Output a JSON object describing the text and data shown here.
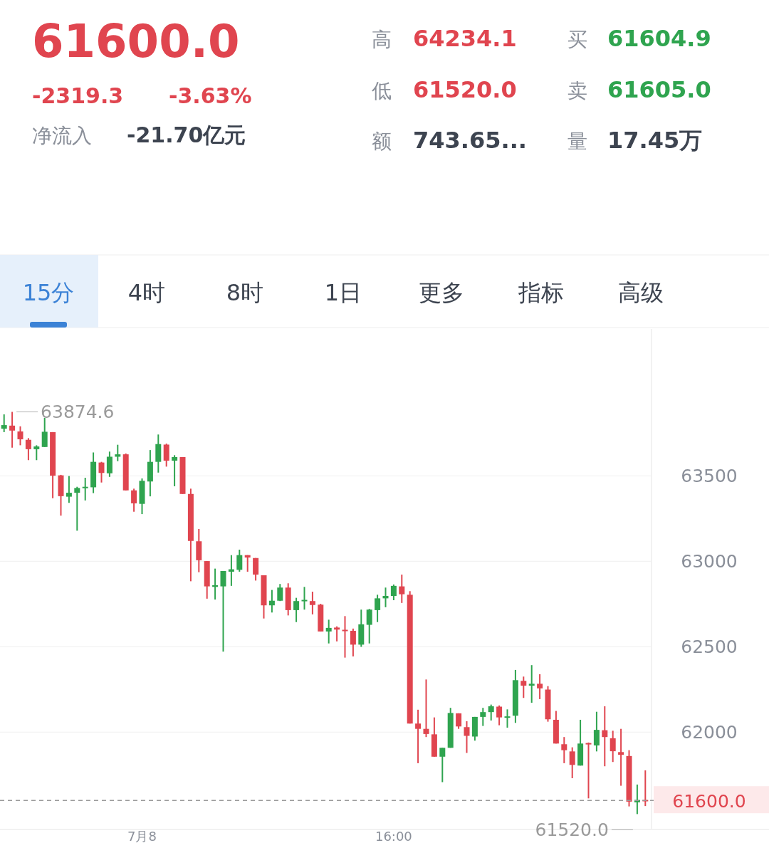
{
  "chart_data": {
    "type": "candlestick",
    "title": "61600.0",
    "annotations": [
      "-2319.3",
      "-3.63%",
      "净流入",
      "-21.70亿元",
      "高",
      "64234.1",
      "低",
      "61520.0",
      "额",
      "743.65...",
      "买",
      "61604.9",
      "卖",
      "61605.0",
      "量",
      "17.45万",
      "15分",
      "4时",
      "8时",
      "1日",
      "更多",
      "指标",
      "高级",
      "63874.6",
      "61520.0"
    ],
    "categories": [
      null,
      null,
      null,
      null,
      null,
      null,
      null,
      null,
      null,
      null,
      null,
      null,
      null,
      null,
      null,
      null,
      null,
      "7月8",
      null,
      null,
      null,
      null,
      null,
      null,
      null,
      null,
      null,
      null,
      null,
      null,
      null,
      null,
      null,
      null,
      null,
      null,
      null,
      null,
      null,
      null,
      null,
      null,
      null,
      null,
      null,
      null,
      null,
      null,
      "16:00",
      null,
      null,
      null,
      null,
      null,
      null,
      null,
      null,
      null,
      null,
      null,
      null,
      null,
      null,
      null,
      null,
      null,
      null,
      null,
      null,
      null,
      null,
      null,
      null,
      null,
      null,
      null,
      null,
      null,
      null,
      null
    ],
    "ohlc": [
      [
        63776,
        63860,
        63756,
        63797
      ],
      [
        63794,
        63874.6,
        63665,
        63765
      ],
      [
        63760,
        63790,
        63679,
        63714
      ],
      [
        63711,
        63721,
        63592,
        63656
      ],
      [
        63656,
        63679,
        63592,
        63672
      ],
      [
        63669,
        63839,
        63669,
        63758
      ],
      [
        63756,
        63756,
        63369,
        63501
      ],
      [
        63503,
        63506,
        63267,
        63381
      ],
      [
        63378,
        63499,
        63342,
        63401
      ],
      [
        63401,
        63436,
        63179,
        63429
      ],
      [
        63430,
        63489,
        63356,
        63436
      ],
      [
        63433,
        63637,
        63399,
        63582
      ],
      [
        63578,
        63582,
        63461,
        63517
      ],
      [
        63515,
        63642,
        63494,
        63612
      ],
      [
        63612,
        63682,
        63586,
        63626
      ],
      [
        63626,
        63631,
        63415,
        63415
      ],
      [
        63415,
        63425,
        63290,
        63339
      ],
      [
        63336,
        63485,
        63276,
        63471
      ],
      [
        63467,
        63651,
        63380,
        63582
      ],
      [
        63582,
        63742,
        63519,
        63686
      ],
      [
        63683,
        63689,
        63554,
        63589
      ],
      [
        63589,
        63621,
        63439,
        63610
      ],
      [
        63610,
        63610,
        63394,
        63394
      ],
      [
        63394,
        63425,
        62883,
        63119
      ],
      [
        63117,
        63189,
        62936,
        63006
      ],
      [
        63001,
        63001,
        62781,
        62853
      ],
      [
        62850,
        62957,
        62776,
        62860
      ],
      [
        62853,
        62943,
        62471,
        62943
      ],
      [
        62939,
        63036,
        62856,
        62953
      ],
      [
        62950,
        63068,
        62939,
        63036
      ],
      [
        63036,
        63036,
        62939,
        63022
      ],
      [
        63019,
        63019,
        62887,
        62922
      ],
      [
        62918,
        62918,
        62665,
        62742
      ],
      [
        62742,
        62832,
        62700,
        62769
      ],
      [
        62769,
        62867,
        62767,
        62846
      ],
      [
        62846,
        62871,
        62683,
        62714
      ],
      [
        62714,
        62786,
        62644,
        62767
      ],
      [
        62767,
        62850,
        62717,
        62774
      ],
      [
        62767,
        62822,
        62689,
        62744
      ],
      [
        62746,
        62751,
        62589,
        62589
      ],
      [
        62589,
        62658,
        62519,
        62610
      ],
      [
        62612,
        62619,
        62531,
        62600
      ],
      [
        62599,
        62679,
        62436,
        62593
      ],
      [
        62593,
        62606,
        62443,
        62512
      ],
      [
        62512,
        62717,
        62499,
        62631
      ],
      [
        62628,
        62721,
        62519,
        62717
      ],
      [
        62714,
        62804,
        62644,
        62783
      ],
      [
        62783,
        62846,
        62731,
        62797
      ],
      [
        62797,
        62864,
        62772,
        62856
      ],
      [
        62853,
        62922,
        62756,
        62807
      ],
      [
        62804,
        62825,
        62050,
        62050
      ],
      [
        62050,
        62131,
        61818,
        62019
      ],
      [
        62019,
        62308,
        61971,
        61989
      ],
      [
        61987,
        62086,
        61856,
        61856
      ],
      [
        61856,
        61908,
        61707,
        61908
      ],
      [
        61908,
        62142,
        61908,
        62112
      ],
      [
        62110,
        62110,
        62019,
        62033
      ],
      [
        62029,
        62064,
        61878,
        61978
      ],
      [
        61974,
        62089,
        61950,
        62089
      ],
      [
        62089,
        62142,
        62036,
        62117
      ],
      [
        62117,
        62161,
        62068,
        62151
      ],
      [
        62149,
        62156,
        62040,
        62086
      ],
      [
        62086,
        62133,
        62026,
        62092
      ],
      [
        62096,
        62364,
        62054,
        62304
      ],
      [
        62300,
        62325,
        62200,
        62272
      ],
      [
        62272,
        62392,
        62172,
        62283
      ],
      [
        62283,
        62339,
        62193,
        62256
      ],
      [
        62249,
        62269,
        62061,
        62075
      ],
      [
        62072,
        62124,
        61933,
        61933
      ],
      [
        61929,
        61971,
        61818,
        61894
      ],
      [
        61887,
        61911,
        61730,
        61808
      ],
      [
        61804,
        62072,
        61804,
        61933
      ],
      [
        61936,
        61939,
        61612,
        61928
      ],
      [
        61922,
        62119,
        61887,
        62013
      ],
      [
        62011,
        62151,
        61800,
        61971
      ],
      [
        61964,
        62008,
        61825,
        61888
      ],
      [
        61883,
        62019,
        61686,
        61867
      ],
      [
        61860,
        61894,
        61565,
        61593
      ],
      [
        61589,
        61693,
        61520,
        61603
      ],
      [
        61603,
        61776,
        61567,
        61600
      ]
    ],
    "ylim": [
      61430,
      64360
    ],
    "yticks": [
      62000,
      62500,
      63000,
      63500
    ],
    "grid": "y",
    "ref_lines": [
      {
        "axis": "y",
        "value": 61600,
        "label": "61600.0",
        "color": "#9a9a9a",
        "line_style": "dashed"
      }
    ]
  }
}
